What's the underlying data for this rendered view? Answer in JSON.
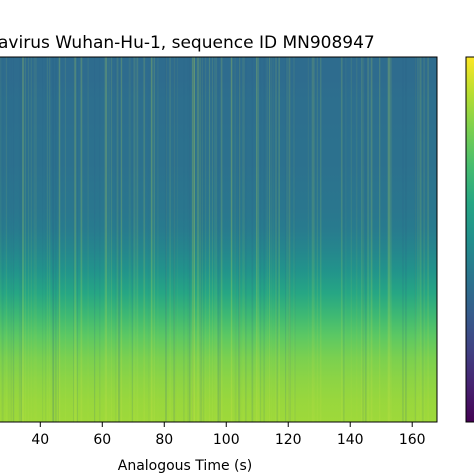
{
  "chart_data": {
    "type": "heatmap",
    "title": "avirus Wuhan-Hu-1, sequence ID MN908947",
    "xlabel": "Analogous Time (s)",
    "ylabel": "",
    "x_ticks": [
      40,
      60,
      80,
      100,
      120,
      140,
      160
    ],
    "x_tick_labels": [
      "40",
      "60",
      "80",
      "100",
      "120",
      "140",
      "160"
    ],
    "xlim": [
      27,
      168
    ],
    "colormap": "viridis",
    "colorbar": true,
    "description_of_values": "Spectrogram intensity: low (dark teal/blue) across the upper frequencies, rising to high (green-yellow) in the lowest frequency bands; faint bright vertical streaks scattered across time.",
    "intensity_profile_top_to_bottom": [
      0.36,
      0.36,
      0.37,
      0.37,
      0.38,
      0.38,
      0.39,
      0.4,
      0.42,
      0.46,
      0.52,
      0.6,
      0.68,
      0.75,
      0.8,
      0.83,
      0.85,
      0.86
    ],
    "colors": {
      "low": "#2d6f8e",
      "mid": "#21a585",
      "high": "#b6de2b",
      "max": "#e7e419",
      "colorbar_bottom": "#440154",
      "colorbar_top": "#fde725"
    }
  }
}
